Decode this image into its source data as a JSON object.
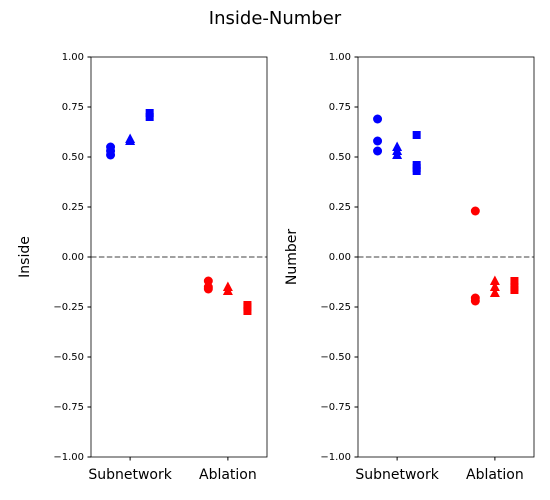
{
  "title": "Inside-Number",
  "chart_data": [
    {
      "type": "scatter",
      "ylabel": "Inside",
      "categories": [
        "Subnetwork",
        "Ablation"
      ],
      "colors": [
        "#0000ff",
        "#ff0000"
      ],
      "xlim": [
        -0.4,
        1.4
      ],
      "ylim": [
        -1,
        1
      ],
      "yticks": [
        {
          "value": -1,
          "label": "−1.00"
        },
        {
          "value": -0.75,
          "label": "−0.75"
        },
        {
          "value": -0.5,
          "label": "−0.50"
        },
        {
          "value": -0.25,
          "label": "−0.25"
        },
        {
          "value": 0,
          "label": "0.00"
        },
        {
          "value": 0.25,
          "label": "0.25"
        },
        {
          "value": 0.5,
          "label": "0.50"
        },
        {
          "value": 0.75,
          "label": "0.75"
        },
        {
          "value": 1,
          "label": "1.00"
        }
      ],
      "hline": {
        "value": 0,
        "color": "#808080",
        "dashed": true
      },
      "series": [
        {
          "marker": "circle",
          "values": [
            [
              0.55,
              0.53,
              0.51
            ],
            [
              -0.12,
              -0.15,
              -0.16
            ]
          ]
        },
        {
          "marker": "triangle",
          "values": [
            [
              0.59,
              0.58
            ],
            [
              -0.15,
              -0.17
            ]
          ]
        },
        {
          "marker": "square",
          "values": [
            [
              0.72,
              0.7
            ],
            [
              -0.24,
              -0.27,
              -0.25
            ]
          ]
        }
      ]
    },
    {
      "type": "scatter",
      "ylabel": "Number",
      "categories": [
        "Subnetwork",
        "Ablation"
      ],
      "colors": [
        "#0000ff",
        "#ff0000"
      ],
      "xlim": [
        -0.4,
        1.4
      ],
      "ylim": [
        -1,
        1
      ],
      "yticks": [
        {
          "value": -1,
          "label": "−1.00"
        },
        {
          "value": -0.75,
          "label": "−0.75"
        },
        {
          "value": -0.5,
          "label": "−0.50"
        },
        {
          "value": -0.25,
          "label": "−0.25"
        },
        {
          "value": 0,
          "label": "0.00"
        },
        {
          "value": 0.25,
          "label": "0.25"
        },
        {
          "value": 0.5,
          "label": "0.50"
        },
        {
          "value": 0.75,
          "label": "0.75"
        },
        {
          "value": 1,
          "label": "1.00"
        }
      ],
      "hline": {
        "value": 0,
        "color": "#808080",
        "dashed": true
      },
      "series": [
        {
          "marker": "circle",
          "values": [
            [
              0.69,
              0.58,
              0.53
            ],
            [
              0.23,
              -0.205,
              -0.22
            ]
          ]
        },
        {
          "marker": "triangle",
          "values": [
            [
              0.55,
              0.53,
              0.51
            ],
            [
              -0.12,
              -0.15,
              -0.18
            ]
          ]
        },
        {
          "marker": "square",
          "values": [
            [
              0.61,
              0.46,
              0.43,
              0.445
            ],
            [
              -0.12,
              -0.15,
              -0.165
            ]
          ]
        }
      ]
    }
  ]
}
